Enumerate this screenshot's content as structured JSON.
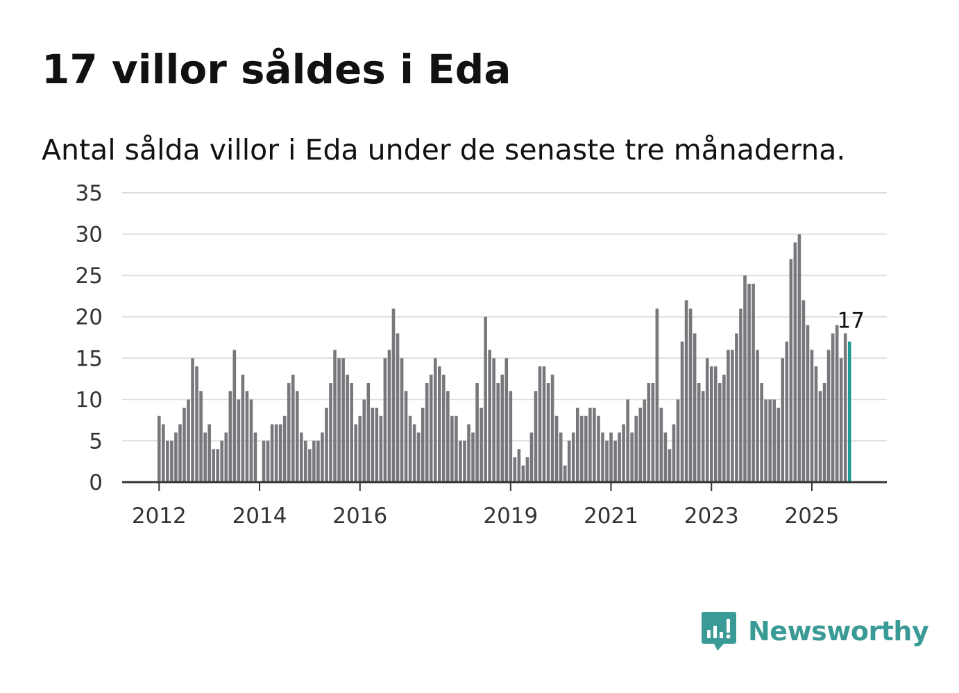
{
  "title": "17 villor såldes i Eda",
  "subtitle": "Antal sålda villor i Eda under de senaste tre månaderna.",
  "brand": {
    "name": "Newsworthy",
    "icon": "newsworthy-logo-icon"
  },
  "colors": {
    "bar": "#78777c",
    "highlight": "#1d9a95",
    "grid": "#dddddd",
    "axis": "#333333",
    "brand": "#3a9a96"
  },
  "chart_data": {
    "type": "bar",
    "title": "17 villor såldes i Eda",
    "subtitle": "Antal sålda villor i Eda under de senaste tre månaderna.",
    "xlabel": "",
    "ylabel": "",
    "ylim": [
      0,
      35
    ],
    "y_ticks": [
      "0",
      "5",
      "10",
      "15",
      "20",
      "25",
      "30",
      "35"
    ],
    "grid": true,
    "start_year": 2012,
    "start_month": 1,
    "x_ticks": [
      {
        "label": "2012",
        "index": 0
      },
      {
        "label": "2014",
        "index": 24
      },
      {
        "label": "2016",
        "index": 48
      },
      {
        "label": "2019",
        "index": 84
      },
      {
        "label": "2021",
        "index": 108
      },
      {
        "label": "2023",
        "index": 132
      },
      {
        "label": "2025",
        "index": 156
      }
    ],
    "values": [
      8,
      7,
      5,
      5,
      6,
      7,
      9,
      10,
      15,
      14,
      11,
      6,
      7,
      4,
      4,
      5,
      6,
      11,
      16,
      10,
      13,
      11,
      10,
      6,
      null,
      5,
      5,
      7,
      7,
      7,
      8,
      12,
      13,
      11,
      6,
      5,
      4,
      5,
      5,
      6,
      9,
      12,
      16,
      15,
      15,
      13,
      12,
      7,
      8,
      10,
      12,
      9,
      9,
      8,
      15,
      16,
      21,
      18,
      15,
      11,
      8,
      7,
      6,
      9,
      12,
      13,
      15,
      14,
      13,
      11,
      8,
      8,
      5,
      5,
      7,
      6,
      12,
      9,
      20,
      16,
      15,
      12,
      13,
      15,
      11,
      3,
      4,
      2,
      3,
      6,
      11,
      14,
      14,
      12,
      13,
      8,
      6,
      2,
      5,
      6,
      9,
      8,
      8,
      9,
      9,
      8,
      6,
      5,
      6,
      5,
      6,
      7,
      10,
      6,
      8,
      9,
      10,
      12,
      12,
      21,
      9,
      6,
      4,
      7,
      10,
      17,
      22,
      21,
      18,
      12,
      11,
      15,
      14,
      14,
      12,
      13,
      16,
      16,
      18,
      21,
      25,
      24,
      24,
      16,
      12,
      10,
      10,
      10,
      9,
      15,
      17,
      27,
      29,
      30,
      22,
      19,
      16,
      14,
      11,
      12,
      16,
      18,
      19,
      15,
      18,
      17
    ],
    "highlight_index": 165,
    "highlight_label": "17",
    "legend": "none"
  }
}
